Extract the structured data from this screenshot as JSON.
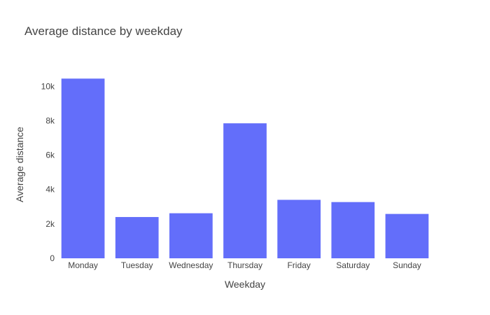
{
  "chart_data": {
    "type": "bar",
    "title": "Average distance by weekday",
    "xlabel": "Weekday",
    "ylabel": "Average distance",
    "categories": [
      "Monday",
      "Tuesday",
      "Wednesday",
      "Thursday",
      "Friday",
      "Saturday",
      "Sunday"
    ],
    "values": [
      10450,
      2400,
      2620,
      7850,
      3400,
      3270,
      2580
    ],
    "ylim": [
      0,
      10950
    ],
    "yticks": [
      0,
      2000,
      4000,
      6000,
      8000,
      10000
    ],
    "ytick_labels": [
      "0",
      "2k",
      "4k",
      "6k",
      "8k",
      "10k"
    ],
    "bar_color": "#636efa",
    "grid": false,
    "legend": "none"
  }
}
